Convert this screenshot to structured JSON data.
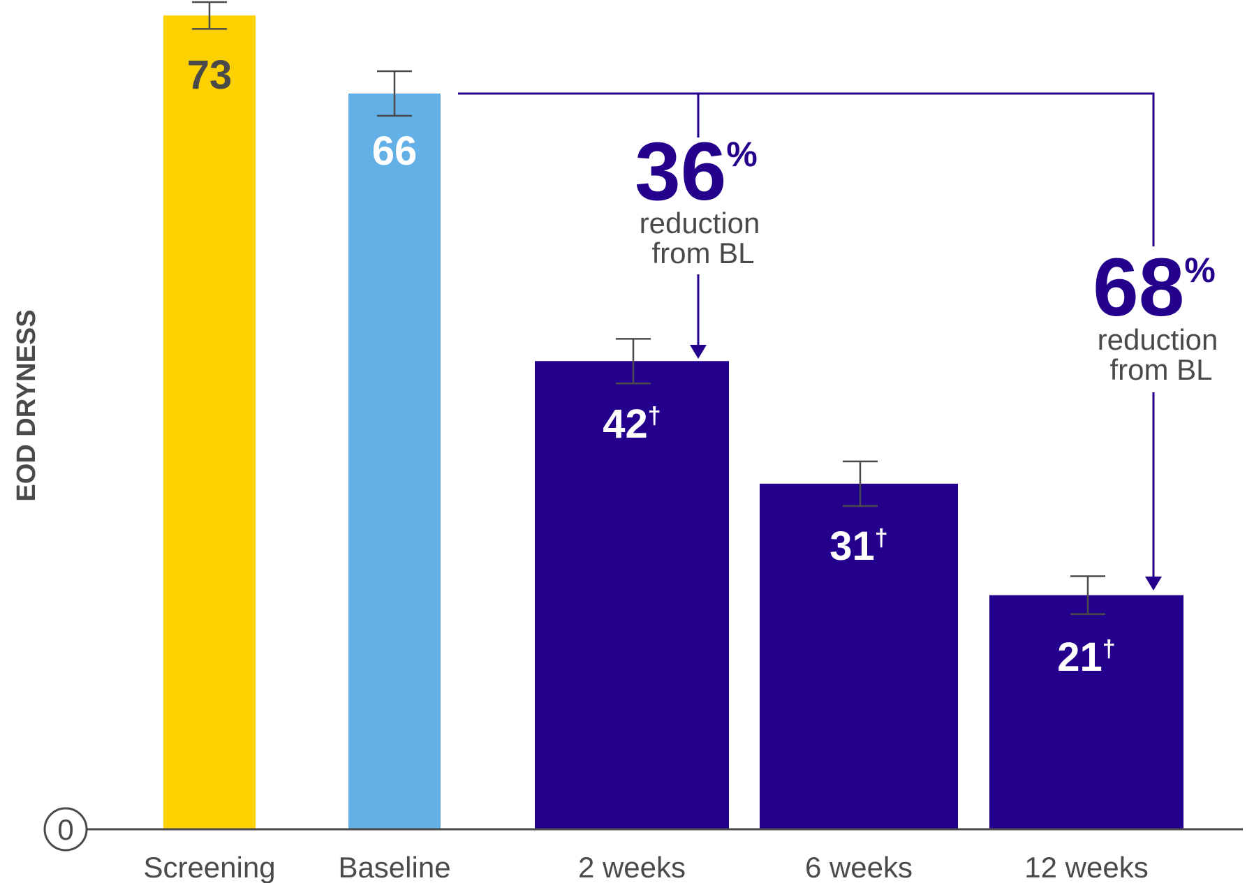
{
  "chart_data": {
    "type": "bar",
    "ylabel": "EOD DRYNESS",
    "y_origin_label": "0",
    "ylim": [
      0,
      74
    ],
    "grid": false,
    "categories": [
      "Screening",
      "Baseline",
      "2 weeks",
      "6 weeks",
      "12 weeks"
    ],
    "values": [
      73,
      66,
      42,
      31,
      21
    ],
    "value_labels": [
      "73",
      "66",
      "42",
      "31",
      "21"
    ],
    "value_markers": [
      "",
      "",
      "†",
      "†",
      "†"
    ],
    "error": [
      1.2,
      2,
      2,
      2,
      1.7
    ],
    "colors": [
      "#FDD000",
      "#62B0E5",
      "#24008C",
      "#24008C",
      "#24008C"
    ],
    "value_label_colors": [
      "#4a4a4a",
      "#ffffff",
      "#ffffff",
      "#ffffff",
      "#ffffff"
    ],
    "annotations": [
      {
        "value": "36",
        "unit": "%",
        "text_line1": "reduction",
        "text_line2": "from BL",
        "from": "Baseline",
        "to": "2 weeks"
      },
      {
        "value": "68",
        "unit": "%",
        "text_line1": "reduction",
        "text_line2": "from BL",
        "from": "Baseline",
        "to": "12 weeks"
      }
    ],
    "accent_color": "#24008C",
    "text_color": "#4a4a4a"
  }
}
